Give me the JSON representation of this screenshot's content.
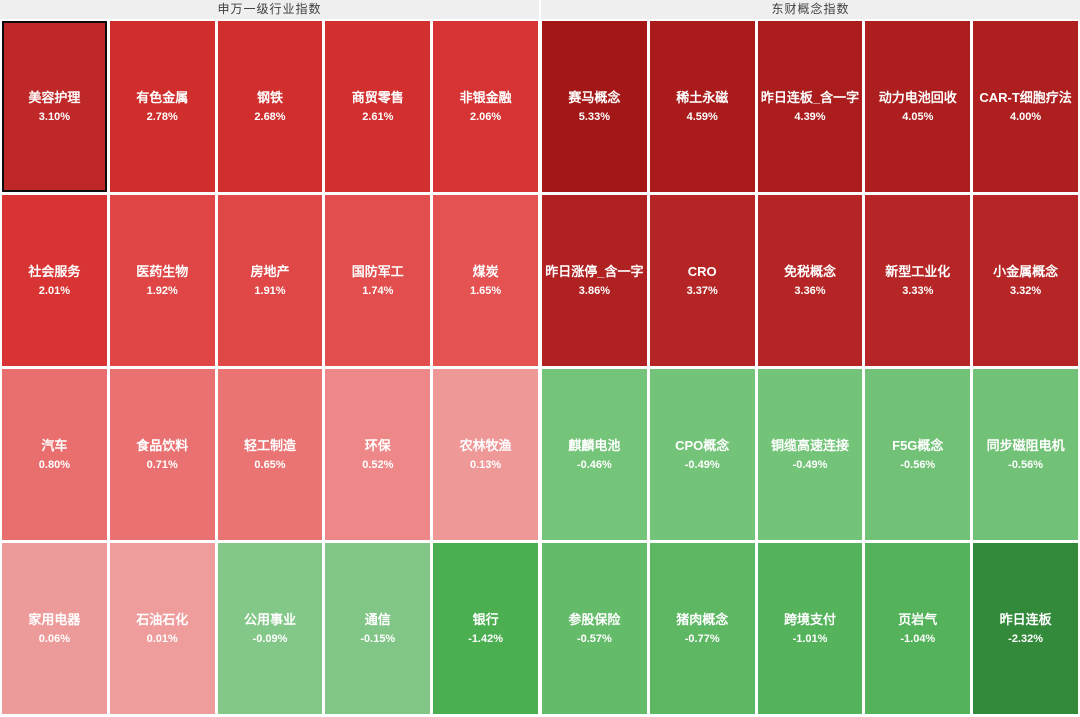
{
  "chart_data": {
    "type": "heatmap",
    "description": "Market performance heatmap; red tiles = gains, green tiles = losses; white text shows index name and daily percent change",
    "colors": {
      "gain_strong": "#a31717",
      "gain_weak": "#ee9c9c",
      "loss_weak": "#84c889",
      "loss_strong": "#338a3a",
      "header_bg": "#efefef",
      "header_text": "#404040",
      "tile_text": "#ffffff",
      "selected_border": "#0c0c0c"
    },
    "panels": [
      {
        "title": "申万一级行业指数",
        "cells": [
          {
            "name": "美容护理",
            "value": 3.1,
            "display": "3.10%",
            "color": "#bf2828",
            "selected": true
          },
          {
            "name": "有色金属",
            "value": 2.78,
            "display": "2.78%",
            "color": "#d02d2d"
          },
          {
            "name": "钢铁",
            "value": 2.68,
            "display": "2.68%",
            "color": "#d12e2e"
          },
          {
            "name": "商贸零售",
            "value": 2.61,
            "display": "2.61%",
            "color": "#d22f2f"
          },
          {
            "name": "非银金融",
            "value": 2.06,
            "display": "2.06%",
            "color": "#d63434"
          },
          {
            "name": "社会服务",
            "value": 2.01,
            "display": "2.01%",
            "color": "#d93434"
          },
          {
            "name": "医药生物",
            "value": 1.92,
            "display": "1.92%",
            "color": "#e04646"
          },
          {
            "name": "房地产",
            "value": 1.91,
            "display": "1.91%",
            "color": "#e04747"
          },
          {
            "name": "国防军工",
            "value": 1.74,
            "display": "1.74%",
            "color": "#e24d4d"
          },
          {
            "name": "煤炭",
            "value": 1.65,
            "display": "1.65%",
            "color": "#e45252"
          },
          {
            "name": "汽车",
            "value": 0.8,
            "display": "0.80%",
            "color": "#e96e6e"
          },
          {
            "name": "食品饮料",
            "value": 0.71,
            "display": "0.71%",
            "color": "#ea7171"
          },
          {
            "name": "轻工制造",
            "value": 0.65,
            "display": "0.65%",
            "color": "#ea7474"
          },
          {
            "name": "环保",
            "value": 0.52,
            "display": "0.52%",
            "color": "#ee8888"
          },
          {
            "name": "农林牧渔",
            "value": 0.13,
            "display": "0.13%",
            "color": "#ee9898"
          },
          {
            "name": "家用电器",
            "value": 0.06,
            "display": "0.06%",
            "color": "#ed9a9a"
          },
          {
            "name": "石油石化",
            "value": 0.01,
            "display": "0.01%",
            "color": "#ee9c9c"
          },
          {
            "name": "公用事业",
            "value": -0.09,
            "display": "-0.09%",
            "color": "#84c889"
          },
          {
            "name": "通信",
            "value": -0.15,
            "display": "-0.15%",
            "color": "#81c686"
          },
          {
            "name": "银行",
            "value": -1.42,
            "display": "-1.42%",
            "color": "#4bae50"
          }
        ]
      },
      {
        "title": "东财概念指数",
        "cells": [
          {
            "name": "赛马概念",
            "value": 5.33,
            "display": "5.33%",
            "color": "#a31717"
          },
          {
            "name": "稀土永磁",
            "value": 4.59,
            "display": "4.59%",
            "color": "#aa1c1c"
          },
          {
            "name": "昨日连板_含一字",
            "value": 4.39,
            "display": "4.39%",
            "color": "#ab1d1d"
          },
          {
            "name": "动力电池回收",
            "value": 4.05,
            "display": "4.05%",
            "color": "#ad1f1f"
          },
          {
            "name": "CAR-T细胞疗法",
            "value": 4.0,
            "display": "4.00%",
            "color": "#ae1f1f"
          },
          {
            "name": "昨日涨停_含一字",
            "value": 3.86,
            "display": "3.86%",
            "color": "#b02121"
          },
          {
            "name": "CRO",
            "value": 3.37,
            "display": "3.37%",
            "color": "#b52525"
          },
          {
            "name": "免税概念",
            "value": 3.36,
            "display": "3.36%",
            "color": "#b52525"
          },
          {
            "name": "新型工业化",
            "value": 3.33,
            "display": "3.33%",
            "color": "#b62626"
          },
          {
            "name": "小金属概念",
            "value": 3.32,
            "display": "3.32%",
            "color": "#b62626"
          },
          {
            "name": "麒麟电池",
            "value": -0.46,
            "display": "-0.46%",
            "color": "#74c479"
          },
          {
            "name": "CPO概念",
            "value": -0.49,
            "display": "-0.49%",
            "color": "#73c478"
          },
          {
            "name": "铜缆高速连接",
            "value": -0.49,
            "display": "-0.49%",
            "color": "#73c478"
          },
          {
            "name": "F5G概念",
            "value": -0.56,
            "display": "-0.56%",
            "color": "#71c276"
          },
          {
            "name": "同步磁阻电机",
            "value": -0.56,
            "display": "-0.56%",
            "color": "#71c276"
          },
          {
            "name": "参股保险",
            "value": -0.57,
            "display": "-0.57%",
            "color": "#64bb6a"
          },
          {
            "name": "猪肉概念",
            "value": -0.77,
            "display": "-0.77%",
            "color": "#5db763"
          },
          {
            "name": "跨境支付",
            "value": -1.01,
            "display": "-1.01%",
            "color": "#55b35b"
          },
          {
            "name": "页岩气",
            "value": -1.04,
            "display": "-1.04%",
            "color": "#54b25a"
          },
          {
            "name": "昨日连板",
            "value": -2.32,
            "display": "-2.32%",
            "color": "#338a3a"
          }
        ]
      }
    ]
  }
}
